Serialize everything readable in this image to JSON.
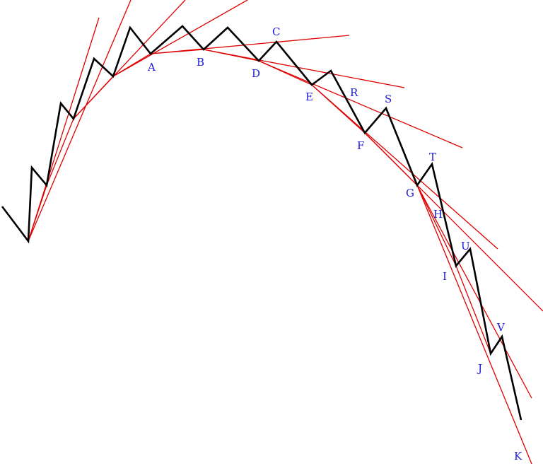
{
  "labels": {
    "A": "A",
    "B": "B",
    "C": "C",
    "D": "D",
    "E": "E",
    "F": "F",
    "G": "G",
    "H": "H",
    "I": "I",
    "J": "J",
    "K": "K",
    "R": "R",
    "S": "S",
    "T": "T",
    "U": "U",
    "V": "V"
  },
  "colors": {
    "price_line": "#000000",
    "tangent_lines": "#e00000",
    "labels": "#1a1adb",
    "background": "#ffffff"
  }
}
